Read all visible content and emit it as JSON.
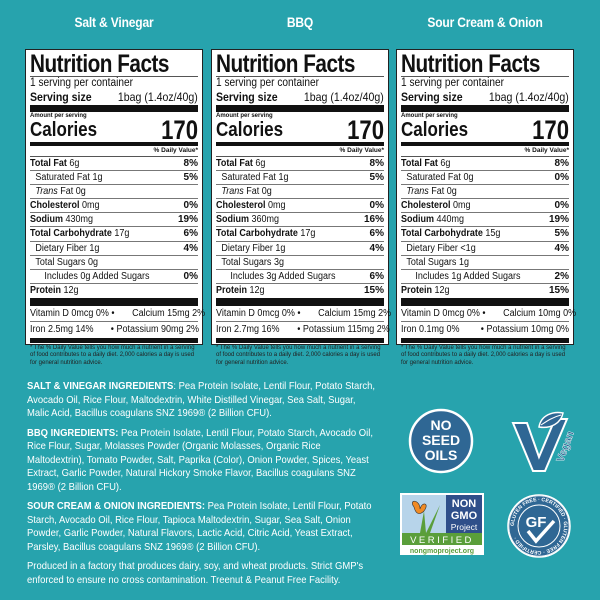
{
  "panels": [
    {
      "flavor": "Salt & Vinegar",
      "title": "Nutrition Facts",
      "servings": "1 serving per container",
      "serving_size_label": "Serving size",
      "serving_size_value": "1bag (1.4oz/40g)",
      "amount_per_serving": "Amount per serving",
      "calories_label": "Calories",
      "calories": "170",
      "daily_value_header": "% Daily Value*",
      "nutrients": [
        {
          "name": "Total Fat",
          "amount": "6g",
          "dv": "8%",
          "bold": true,
          "indent": 0
        },
        {
          "name": "Saturated Fat",
          "amount": "1g",
          "dv": "5%",
          "bold": false,
          "indent": 1
        },
        {
          "name": "Trans",
          "suffix": "Fat 0g",
          "amount": "",
          "dv": "",
          "bold": false,
          "indent": 1,
          "italic": true
        },
        {
          "name": "Cholesterol",
          "amount": "0mg",
          "dv": "0%",
          "bold": true,
          "indent": 0
        },
        {
          "name": "Sodium",
          "amount": "430mg",
          "dv": "19%",
          "bold": true,
          "indent": 0
        },
        {
          "name": "Total Carbohydrate",
          "amount": "17g",
          "dv": "6%",
          "bold": true,
          "indent": 0
        },
        {
          "name": "Dietary Fiber",
          "amount": "1g",
          "dv": "4%",
          "bold": false,
          "indent": 1
        },
        {
          "name": "Total Sugars",
          "amount": "0g",
          "dv": "",
          "bold": false,
          "indent": 1
        },
        {
          "name": "Includes 0g Added Sugars",
          "amount": "",
          "dv": "0%",
          "bold": false,
          "indent": 2
        },
        {
          "name": "Protein",
          "amount": "12g",
          "dv": "",
          "bold": true,
          "indent": 0
        }
      ],
      "vitamins": [
        {
          "left": "Vitamin D 0mcg 0%  •",
          "right": "Calcium 15mg 2%"
        },
        {
          "left": "Iron 2.5mg 14%",
          "right": "• Potassium 90mg 2%"
        }
      ],
      "footnote": "* The % Daily Value tells you how much a nutrient in a serving of food contributes to a daily diet. 2,000 calories a day is used for general nutrition advice."
    },
    {
      "flavor": "BBQ",
      "title": "Nutrition Facts",
      "servings": "1 serving per container",
      "serving_size_label": "Serving size",
      "serving_size_value": "1bag (1.4oz/40g)",
      "amount_per_serving": "Amount per serving",
      "calories_label": "Calories",
      "calories": "170",
      "daily_value_header": "% Daily Value*",
      "nutrients": [
        {
          "name": "Total Fat",
          "amount": "6g",
          "dv": "8%",
          "bold": true,
          "indent": 0
        },
        {
          "name": "Saturated Fat",
          "amount": "1g",
          "dv": "5%",
          "bold": false,
          "indent": 1
        },
        {
          "name": "Trans",
          "suffix": "Fat 0g",
          "amount": "",
          "dv": "",
          "bold": false,
          "indent": 1,
          "italic": true
        },
        {
          "name": "Cholesterol",
          "amount": "0mg",
          "dv": "0%",
          "bold": true,
          "indent": 0
        },
        {
          "name": "Sodium",
          "amount": "360mg",
          "dv": "16%",
          "bold": true,
          "indent": 0
        },
        {
          "name": "Total Carbohydrate",
          "amount": "17g",
          "dv": "6%",
          "bold": true,
          "indent": 0
        },
        {
          "name": "Dietary Fiber",
          "amount": "1g",
          "dv": "4%",
          "bold": false,
          "indent": 1
        },
        {
          "name": "Total Sugars",
          "amount": "3g",
          "dv": "",
          "bold": false,
          "indent": 1
        },
        {
          "name": "Includes 3g Added Sugars",
          "amount": "",
          "dv": "6%",
          "bold": false,
          "indent": 2
        },
        {
          "name": "Protein",
          "amount": "12g",
          "dv": "15%",
          "bold": true,
          "indent": 0
        }
      ],
      "vitamins": [
        {
          "left": "Vitamin D 0mcg 0%  •",
          "right": "Calcium 15mg 2%"
        },
        {
          "left": "Iron 2.7mg 16%",
          "right": "• Potassium 115mg 2%"
        }
      ],
      "footnote": "* The % Daily Value tells you how much a nutrient in a serving of food contributes to a daily diet. 2,000 calories a day is used for general nutrition advice."
    },
    {
      "flavor": "Sour Cream & Onion",
      "title": "Nutrition Facts",
      "servings": "1 serving per container",
      "serving_size_label": "Serving size",
      "serving_size_value": "1bag (1.4oz/40g)",
      "amount_per_serving": "Amount per serving",
      "calories_label": "Calories",
      "calories": "170",
      "daily_value_header": "% Daily Value*",
      "nutrients": [
        {
          "name": "Total Fat",
          "amount": "6g",
          "dv": "8%",
          "bold": true,
          "indent": 0
        },
        {
          "name": "Saturated Fat",
          "amount": "0g",
          "dv": "0%",
          "bold": false,
          "indent": 1
        },
        {
          "name": "Trans",
          "suffix": "Fat 0g",
          "amount": "",
          "dv": "",
          "bold": false,
          "indent": 1,
          "italic": true
        },
        {
          "name": "Cholesterol",
          "amount": "0mg",
          "dv": "0%",
          "bold": true,
          "indent": 0
        },
        {
          "name": "Sodium",
          "amount": "440mg",
          "dv": "19%",
          "bold": true,
          "indent": 0
        },
        {
          "name": "Total Carbohydrate",
          "amount": "15g",
          "dv": "5%",
          "bold": true,
          "indent": 0
        },
        {
          "name": "Dietary Fiber",
          "amount": "<1g",
          "dv": "4%",
          "bold": false,
          "indent": 1
        },
        {
          "name": "Total Sugars",
          "amount": "1g",
          "dv": "",
          "bold": false,
          "indent": 1
        },
        {
          "name": "Includes 1g Added Sugars",
          "amount": "",
          "dv": "2%",
          "bold": false,
          "indent": 2
        },
        {
          "name": "Protein",
          "amount": "12g",
          "dv": "15%",
          "bold": true,
          "indent": 0
        }
      ],
      "vitamins": [
        {
          "left": "Vitamin D 0mcg 0%  •",
          "right": "Calcium 10mg 0%"
        },
        {
          "left": "Iron 0.1mg 0%",
          "right": "• Potassium 10mg 0%"
        }
      ],
      "footnote": "* The % Daily Value tells you how much a nutrient in a serving of food contributes to a daily diet. 2,000 calories a day is used for general nutrition advice."
    }
  ],
  "ingredients": [
    {
      "heading": "SALT & VINEGAR INGREDIENTS",
      "sep": ":",
      "text": " Pea Protein Isolate, Lentil Flour, Potato Starch, Avocado Oil, Rice Flour, Maltodextrin, White Distilled Vinegar, Sea Salt, Sugar, Malic Acid, Bacillus coagulans SNZ 1969® (2 Billion CFU)."
    },
    {
      "heading": "BBQ INGREDIENTS:",
      "sep": "",
      "text": " Pea Protein Isolate, Lentil Flour, Potato Starch, Avocado Oil, Rice Flour, Sugar, Molasses Powder (Organic Molasses, Organic Rice Maltodextrin), Tomato Powder, Salt, Paprika (Color), Onion Powder, Spices, Yeast Extract, Garlic Powder, Natural Hickory Smoke Flavor, Bacillus coagulans SNZ 1969® (2 Billion CFU)."
    },
    {
      "heading": "SOUR CREAM & ONION INGREDIENTS:",
      "sep": "",
      "text": " Pea Protein Isolate, Lentil Flour, Potato Starch, Avocado Oil, Rice Flour, Tapioca Maltodextrin, Sugar, Sea Salt, Onion Powder, Garlic Powder, Natural Flavors, Lactic Acid, Citric Acid, Yeast Extract, Parsley, Bacillus coagulans SNZ 1969® (2 Billion CFU)."
    }
  ],
  "allergen_statement": "Produced in a factory that produces dairy, soy, and wheat products. Strict GMP's enforced to ensure no cross contamination. Treenut & Peanut Free Facility.",
  "badges": {
    "no_seed_oils": [
      "NO",
      "SEED",
      "OILS"
    ],
    "vegan": {
      "letter": "V",
      "word": "Vegan"
    },
    "non_gmo": {
      "line1": "NON",
      "line2": "GMO",
      "line3": "Project",
      "verified": "VERIFIED",
      "url": "nongmoproject.org"
    },
    "gluten_free": {
      "letters": "GF",
      "ring_text": "GLUTEN FREE · CERTIFIED · GLUTEN FREE · CERTIFIED ·"
    }
  },
  "colors": {
    "background": "#27a3ad",
    "badge_blue": "#2f6794",
    "gmo_green": "#5a9e3a"
  }
}
